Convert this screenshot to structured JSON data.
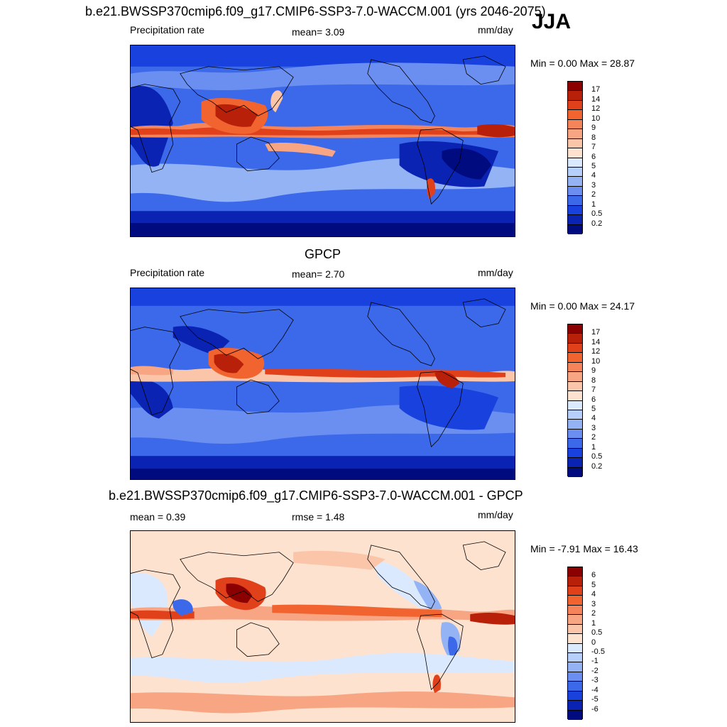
{
  "season": "JJA",
  "panels": [
    {
      "title": "b.e21.BWSSP370cmip6.f09_g17.CMIP6-SSP3-7.0-WACCM.001 (yrs 2046-2075)",
      "left_label": "Precipitation rate",
      "center_label": "mean=   3.09",
      "units": "mm/day",
      "minmax": "Min =   0.00 Max =  28.87"
    },
    {
      "title": "GPCP",
      "left_label": "Precipitation rate",
      "center_label": "mean=   2.70",
      "units": "mm/day",
      "minmax": "Min =   0.00 Max =  24.17"
    },
    {
      "title": "b.e21.BWSSP370cmip6.f09_g17.CMIP6-SSP3-7.0-WACCM.001 - GPCP",
      "left_label": "mean =   0.39",
      "center_label": "rmse =   1.48",
      "units": "mm/day",
      "minmax": "Min =  -7.91 Max =  16.43"
    }
  ],
  "colorbars": {
    "precip": {
      "labels": [
        "17",
        "14",
        "12",
        "10",
        "9",
        "8",
        "7",
        "6",
        "5",
        "4",
        "3",
        "2",
        "1",
        "0.5",
        "0.2"
      ],
      "colors": [
        "#8b0000",
        "#b8200a",
        "#e0401a",
        "#f2642f",
        "#f5845a",
        "#f8a583",
        "#fbc5aa",
        "#fde2d0",
        "#dbe9ff",
        "#b7d0fb",
        "#93b3f5",
        "#6a8ff0",
        "#3c69ea",
        "#1841de",
        "#0a23b3",
        "#000b80"
      ]
    },
    "diff": {
      "labels": [
        "6",
        "5",
        "4",
        "3",
        "2",
        "1",
        "0.5",
        "0",
        "-0.5",
        "-1",
        "-2",
        "-3",
        "-4",
        "-5",
        "-6"
      ],
      "colors": [
        "#8b0000",
        "#b8200a",
        "#e0401a",
        "#f2642f",
        "#f5845a",
        "#f8a583",
        "#fbc5aa",
        "#fde2d0",
        "#dbe9ff",
        "#b7d0fb",
        "#93b3f5",
        "#6a8ff0",
        "#3c69ea",
        "#1841de",
        "#0a23b3",
        "#000b80"
      ]
    }
  }
}
